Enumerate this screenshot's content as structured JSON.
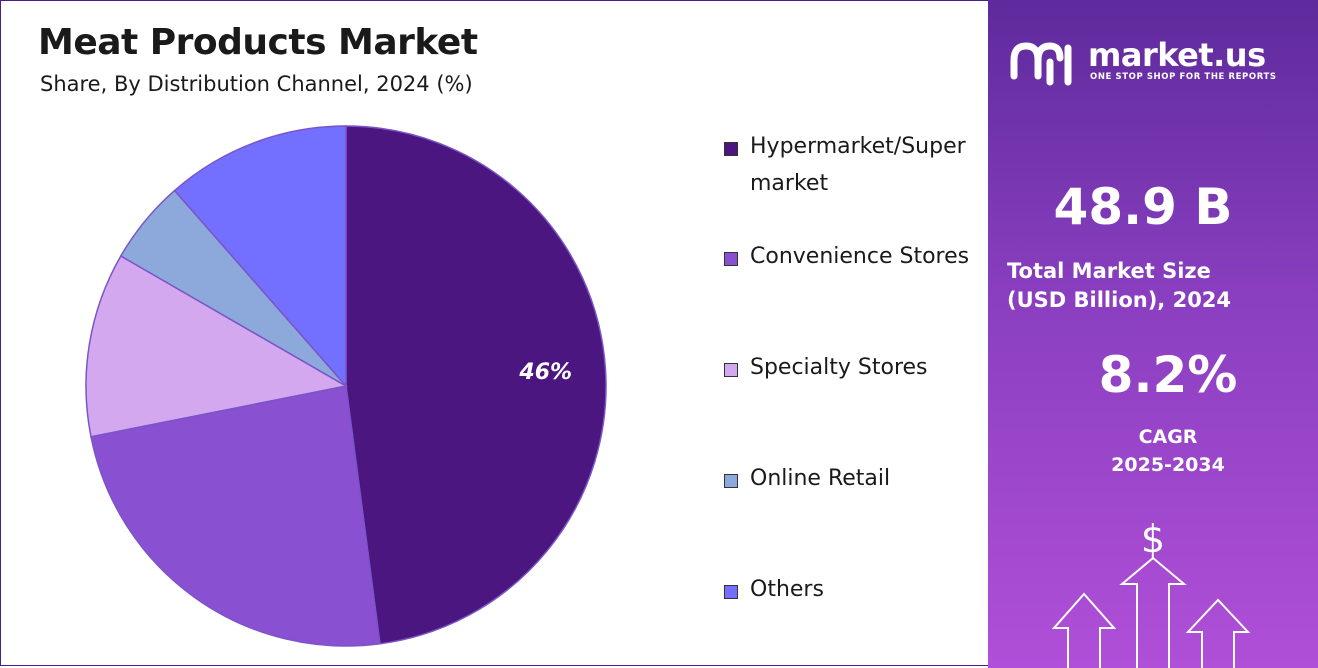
{
  "header": {
    "title": "Meat Products Market",
    "subtitle": "Share, By Distribution Channel, 2024 (%)"
  },
  "chart_data": {
    "type": "pie",
    "categories": [
      "Hypermarket/Supermarket",
      "Convenience Stores",
      "Specialty Stores",
      "Online Retail",
      "Others"
    ],
    "values": [
      46,
      23,
      11,
      5,
      11
    ],
    "colors": [
      "#4b1680",
      "#8a50d2",
      "#d4a8ee",
      "#8da9dc",
      "#7370ff"
    ],
    "data_labels": [
      "46%",
      "",
      "",
      "",
      ""
    ],
    "legend_position": "right",
    "start_angle": "12 o'clock",
    "direction": "clockwise"
  },
  "legend": {
    "items": [
      {
        "label": "Hypermarket/Supermarket",
        "color": "#4b1680"
      },
      {
        "label": "Convenience Stores",
        "color": "#8a50d2"
      },
      {
        "label": "Specialty Stores",
        "color": "#d4a8ee"
      },
      {
        "label": "Online Retail",
        "color": "#8da9dc"
      },
      {
        "label": "Others",
        "color": "#7370ff"
      }
    ]
  },
  "panel": {
    "brand_name": "market.us",
    "brand_tagline": "ONE STOP SHOP FOR THE REPORTS",
    "brand_icon": "market-us-logo-icon",
    "market_size_value": "48.9 B",
    "market_size_label_line1": "Total Market Size",
    "market_size_label_line2": "(USD Billion), 2024",
    "cagr_value": "8.2%",
    "cagr_label_line1": "CAGR",
    "cagr_label_line2": "2025-2034",
    "dollar_symbol": "$",
    "background_top": "#5e2a9c",
    "background_bottom": "#b04fd8"
  }
}
